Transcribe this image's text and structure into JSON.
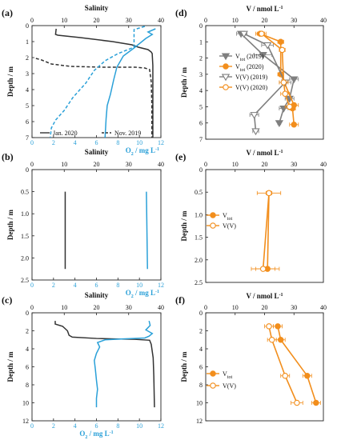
{
  "chart_data": [
    {
      "id": "a",
      "panel_label": "(a)",
      "type": "line",
      "y_label": "Depth / m",
      "y_lim": [
        0,
        7
      ],
      "y_ticks": [
        0,
        1,
        2,
        3,
        4,
        5,
        6,
        7
      ],
      "y_inverted": true,
      "x_top_label": "Salinity",
      "x_top_lim": [
        0,
        40
      ],
      "x_top_ticks": [
        0,
        10,
        20,
        30,
        40
      ],
      "x_bottom_label": "O2 / mg L-1",
      "x_bottom_lim": [
        0,
        12
      ],
      "x_bottom_ticks": [
        0,
        2,
        4,
        6,
        8,
        10,
        12
      ],
      "legend": [
        {
          "label": "Jan. 2020",
          "style": "solid"
        },
        {
          "label": "Nov. 2019",
          "style": "dashed"
        }
      ],
      "series": [
        {
          "name": "Jan. 2020",
          "quantity": "Salinity",
          "color": "#333333",
          "dash": false,
          "points": [
            [
              7.5,
              0.2
            ],
            [
              7.3,
              0.55
            ],
            [
              8,
              0.6
            ],
            [
              15,
              0.75
            ],
            [
              25,
              1.0
            ],
            [
              31,
              1.2
            ],
            [
              33,
              1.35
            ],
            [
              36,
              1.5
            ],
            [
              37,
              1.65
            ],
            [
              37.3,
              1.75
            ],
            [
              37.5,
              2.5
            ],
            [
              37.5,
              7
            ]
          ]
        },
        {
          "name": "Jan. 2020",
          "quantity": "O2",
          "color": "#2aa0d8",
          "dash": false,
          "points": [
            [
              11.5,
              0.2
            ],
            [
              10.8,
              0.4
            ],
            [
              11.2,
              0.55
            ],
            [
              10.6,
              0.8
            ],
            [
              9.5,
              1.4
            ],
            [
              8.5,
              1.9
            ],
            [
              7.9,
              2.6
            ],
            [
              7.6,
              3.4
            ],
            [
              7.3,
              4.3
            ],
            [
              7.0,
              5.0
            ],
            [
              6.9,
              5.8
            ],
            [
              6.8,
              7.0
            ]
          ]
        },
        {
          "name": "Nov. 2019",
          "quantity": "Salinity",
          "color": "#333333",
          "dash": true,
          "points": [
            [
              1.2,
              2.05
            ],
            [
              3,
              2.15
            ],
            [
              6,
              2.4
            ],
            [
              12,
              2.55
            ],
            [
              22,
              2.6
            ],
            [
              32,
              2.6
            ],
            [
              35,
              2.65
            ],
            [
              36.5,
              2.75
            ],
            [
              37,
              3.5
            ],
            [
              37.2,
              5.0
            ],
            [
              37.2,
              7.0
            ]
          ]
        },
        {
          "name": "Nov. 2019",
          "quantity": "O2",
          "color": "#2aa0d8",
          "dash": true,
          "points": [
            [
              10.5,
              0.05
            ],
            [
              9.5,
              0.25
            ],
            [
              9.5,
              1.35
            ],
            [
              8.0,
              1.75
            ],
            [
              6.8,
              2.2
            ],
            [
              5.8,
              2.8
            ],
            [
              5.0,
              3.6
            ],
            [
              3.8,
              4.5
            ],
            [
              3.0,
              5.3
            ],
            [
              2.2,
              5.9
            ],
            [
              1.8,
              6.4
            ],
            [
              1.7,
              7.0
            ]
          ]
        }
      ]
    },
    {
      "id": "b",
      "panel_label": "(b)",
      "type": "line",
      "y_label": "Depth / m",
      "y_lim": [
        0,
        2.5
      ],
      "y_ticks": [
        0,
        0.5,
        1.0,
        1.5,
        2.0,
        2.5
      ],
      "y_tick_labels": [
        "0",
        "0.5",
        "1.0",
        "1.5",
        "2.0",
        "2.5"
      ],
      "y_inverted": true,
      "x_top_label": "Salinity",
      "x_top_lim": [
        0,
        40
      ],
      "x_top_ticks": [
        0,
        10,
        20,
        30,
        40
      ],
      "x_bottom_label": "O2 / mg L-1",
      "x_bottom_lim": [
        0,
        12
      ],
      "x_bottom_ticks": [
        0,
        2,
        4,
        6,
        8,
        10,
        12
      ],
      "series": [
        {
          "quantity": "Salinity",
          "color": "#333333",
          "dash": false,
          "points": [
            [
              10.3,
              0.5
            ],
            [
              10.3,
              2.25
            ]
          ]
        },
        {
          "quantity": "O2",
          "color": "#2aa0d8",
          "dash": false,
          "points": [
            [
              10.65,
              0.5
            ],
            [
              10.75,
              2.25
            ]
          ]
        }
      ]
    },
    {
      "id": "c",
      "panel_label": "(c)",
      "type": "line",
      "y_label": "Depth / m",
      "y_lim": [
        0,
        12
      ],
      "y_ticks": [
        0,
        2,
        4,
        6,
        8,
        10,
        12
      ],
      "y_inverted": true,
      "x_top_label": "Salinity",
      "x_top_lim": [
        0,
        40
      ],
      "x_top_ticks": [
        0,
        10,
        20,
        30,
        40
      ],
      "x_bottom_label": "O2 / mg L-1",
      "x_bottom_lim": [
        0,
        12
      ],
      "x_bottom_ticks": [
        0,
        2,
        4,
        6,
        8,
        10,
        12
      ],
      "series": [
        {
          "quantity": "Salinity",
          "color": "#333333",
          "dash": false,
          "points": [
            [
              7.2,
              0.9
            ],
            [
              7.2,
              1.25
            ],
            [
              9.5,
              1.5
            ],
            [
              11,
              2.0
            ],
            [
              11.5,
              2.5
            ],
            [
              12.5,
              2.7
            ],
            [
              20,
              2.85
            ],
            [
              32,
              2.95
            ],
            [
              36.5,
              3.05
            ],
            [
              37,
              3.5
            ],
            [
              37.6,
              5
            ],
            [
              37.8,
              7
            ],
            [
              38,
              10.5
            ]
          ]
        },
        {
          "quantity": "O2",
          "color": "#2aa0d8",
          "dash": false,
          "points": [
            [
              10.9,
              0.9
            ],
            [
              11.0,
              1.4
            ],
            [
              10.6,
              1.9
            ],
            [
              11.2,
              2.3
            ],
            [
              10.9,
              2.6
            ],
            [
              10.5,
              2.8
            ],
            [
              8.5,
              2.9
            ],
            [
              6.8,
              3.0
            ],
            [
              6.1,
              3.3
            ],
            [
              6.3,
              3.8
            ],
            [
              6.0,
              4.5
            ],
            [
              5.8,
              5.3
            ],
            [
              5.9,
              6.3
            ],
            [
              6.0,
              7.5
            ],
            [
              6.1,
              8.5
            ],
            [
              6.0,
              9.5
            ],
            [
              6.0,
              10.5
            ]
          ]
        }
      ]
    },
    {
      "id": "d",
      "panel_label": "(d)",
      "type": "line",
      "y_label": "Depth / m",
      "y_lim": [
        0,
        7
      ],
      "y_ticks": [
        0,
        1,
        2,
        3,
        4,
        5,
        6,
        7
      ],
      "y_inverted": true,
      "x_top_label": "V / nmol L-1",
      "x_top_lim": [
        0,
        40
      ],
      "x_top_ticks": [
        0,
        10,
        20,
        30,
        40
      ],
      "legend": [
        {
          "label": "Vtot (2019)",
          "main": "V",
          "sub": "tot",
          "suffix": " (2019)",
          "color": "#7f7f7f",
          "marker": "triangle-down",
          "filled": true
        },
        {
          "label": "Vtot (2020)",
          "main": "V",
          "sub": "tot",
          "suffix": " (2020)",
          "color": "#f28e1c",
          "marker": "circle",
          "filled": true
        },
        {
          "label": "V(V) (2019)",
          "main": "V(V) (2019)",
          "sub": "",
          "suffix": "",
          "color": "#7f7f7f",
          "marker": "triangle-down",
          "filled": false
        },
        {
          "label": "V(V) (2020)",
          "main": "V(V) (2020)",
          "sub": "",
          "suffix": "",
          "color": "#f28e1c",
          "marker": "circle",
          "filled": false
        }
      ],
      "series": [
        {
          "name": "Vtot (2019)",
          "color": "#7f7f7f",
          "marker": "triangle-down",
          "filled": true,
          "points": [
            [
              12,
              0.5,
              1.5
            ],
            [
              19.5,
              1.8,
              3
            ],
            [
              30,
              3.3,
              1.5
            ],
            [
              28.5,
              4.5,
              1.5
            ],
            [
              26.5,
              5.1,
              1.5
            ],
            [
              25,
              6.0,
              0.5
            ]
          ]
        },
        {
          "name": "Vtot (2020)",
          "color": "#f28e1c",
          "marker": "circle",
          "filled": true,
          "points": [
            [
              18.5,
              0.5,
              1.5
            ],
            [
              25.5,
              1.0,
              1
            ],
            [
              25.5,
              3.0,
              1
            ],
            [
              30,
              4.9,
              1.5
            ],
            [
              29.5,
              5.1,
              1
            ],
            [
              30,
              6.1,
              1.5
            ]
          ]
        },
        {
          "name": "V(V) (2019)",
          "color": "#7f7f7f",
          "marker": "triangle-down",
          "filled": false,
          "points": [
            [
              13,
              0.5,
              1
            ],
            [
              21,
              1.2,
              2
            ],
            [
              27,
              3.5,
              2
            ],
            [
              16.5,
              5.5,
              1.5
            ],
            [
              17,
              6.5,
              1
            ]
          ]
        },
        {
          "name": "V(V) (2020)",
          "color": "#f28e1c",
          "marker": "circle",
          "filled": false,
          "points": [
            [
              19,
              0.5,
              1.5
            ],
            [
              26,
              1.5,
              1
            ],
            [
              26.5,
              3.5,
              1.5
            ],
            [
              27,
              4.2,
              1.5
            ],
            [
              28.5,
              5.0,
              1.5
            ]
          ]
        }
      ]
    },
    {
      "id": "e",
      "panel_label": "(e)",
      "type": "line",
      "y_label": "Depth / m",
      "y_lim": [
        0,
        2.5
      ],
      "y_ticks": [
        0,
        0.5,
        1.0,
        1.5,
        2.0,
        2.5
      ],
      "y_tick_labels": [
        "0",
        "0.5",
        "1.0",
        "1.5",
        "2.0",
        "2.5"
      ],
      "y_inverted": true,
      "x_top_label": "V / nmol L-1",
      "x_top_lim": [
        0,
        40
      ],
      "x_top_ticks": [
        0,
        10,
        20,
        30,
        40
      ],
      "legend": [
        {
          "label": "Vtot",
          "main": "V",
          "sub": "tot",
          "suffix": "",
          "color": "#f28e1c",
          "marker": "circle",
          "filled": true
        },
        {
          "label": "V(V)",
          "main": "V(V)",
          "sub": "",
          "suffix": "",
          "color": "#f28e1c",
          "marker": "circle",
          "filled": false
        }
      ],
      "series": [
        {
          "name": "Vtot",
          "color": "#f28e1c",
          "marker": "circle",
          "filled": true,
          "points": [
            [
              21.5,
              0.52,
              4
            ],
            [
              21,
              2.2,
              4
            ]
          ]
        },
        {
          "name": "V(V)",
          "color": "#f28e1c",
          "marker": "circle",
          "filled": false,
          "points": [
            [
              21.5,
              0.52,
              1
            ],
            [
              19.5,
              2.2,
              4
            ]
          ]
        }
      ]
    },
    {
      "id": "f",
      "panel_label": "(f)",
      "type": "line",
      "y_label": "Depth / m",
      "y_lim": [
        0,
        12
      ],
      "y_ticks": [
        0,
        2,
        4,
        6,
        8,
        10,
        12
      ],
      "y_inverted": true,
      "x_top_label": "V / nmol L-1",
      "x_top_lim": [
        0,
        40
      ],
      "x_top_ticks": [
        0,
        10,
        20,
        30,
        40
      ],
      "legend": [
        {
          "label": "Vtot",
          "main": "V",
          "sub": "tot",
          "suffix": "",
          "color": "#f28e1c",
          "marker": "circle",
          "filled": true
        },
        {
          "label": "V(V)",
          "main": "V(V)",
          "sub": "",
          "suffix": "",
          "color": "#f28e1c",
          "marker": "circle",
          "filled": false
        }
      ],
      "series": [
        {
          "name": "Vtot",
          "color": "#f28e1c",
          "marker": "circle",
          "filled": true,
          "points": [
            [
              24.5,
              1.5,
              1.5
            ],
            [
              25.5,
              3.0,
              1.5
            ],
            [
              34.5,
              7.0,
              1.5
            ],
            [
              37.5,
              10.0,
              1.5
            ]
          ]
        },
        {
          "name": "V(V)",
          "color": "#f28e1c",
          "marker": "circle",
          "filled": false,
          "points": [
            [
              21.5,
              1.5,
              1.5
            ],
            [
              22.5,
              3.0,
              1.5
            ],
            [
              27,
              7.0,
              1.5
            ],
            [
              31,
              10.0,
              2
            ]
          ]
        }
      ]
    }
  ]
}
